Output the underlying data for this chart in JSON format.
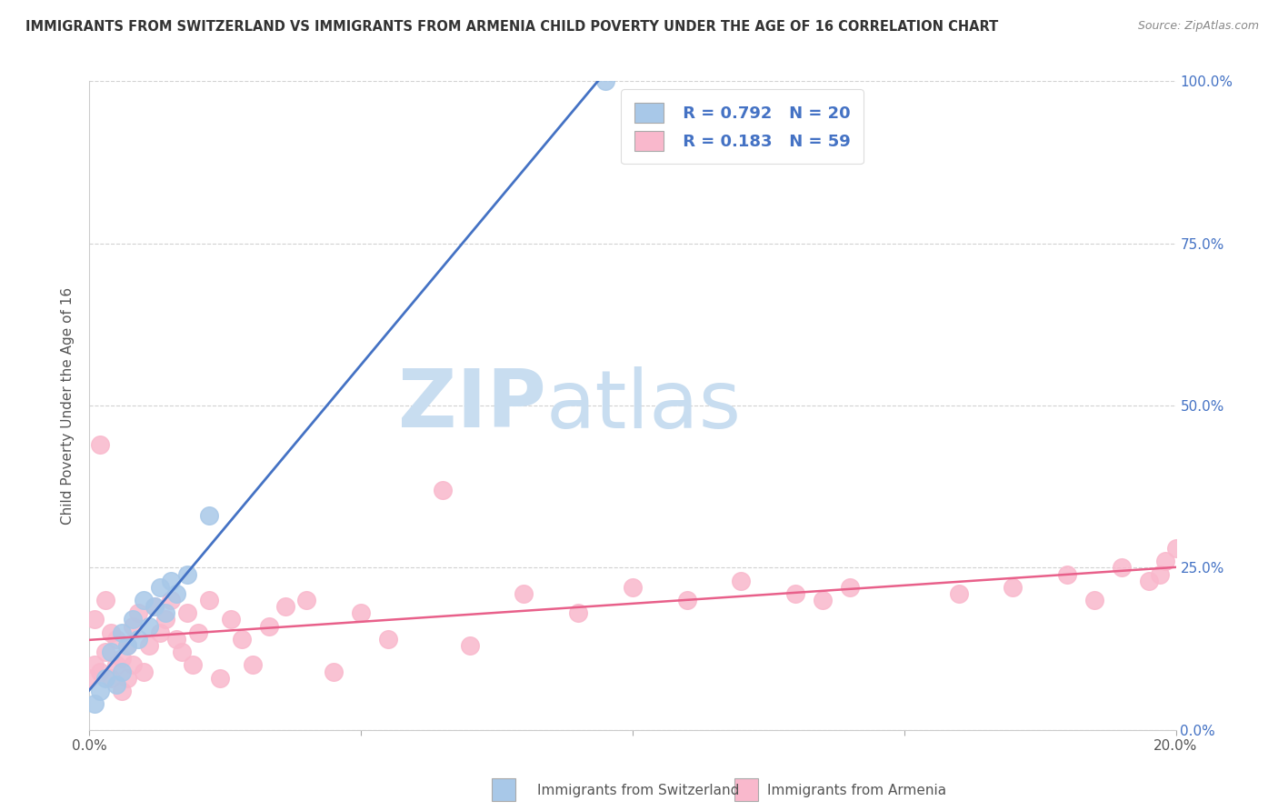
{
  "title": "IMMIGRANTS FROM SWITZERLAND VS IMMIGRANTS FROM ARMENIA CHILD POVERTY UNDER THE AGE OF 16 CORRELATION CHART",
  "source": "Source: ZipAtlas.com",
  "ylabel": "Child Poverty Under the Age of 16",
  "xlabel_switzerland": "Immigrants from Switzerland",
  "xlabel_armenia": "Immigrants from Armenia",
  "watermark_zip": "ZIP",
  "watermark_atlas": "atlas",
  "legend_r_switzerland": "R = 0.792",
  "legend_n_switzerland": "N = 20",
  "legend_r_armenia": "R = 0.183",
  "legend_n_armenia": "N = 59",
  "color_switzerland": "#a8c8e8",
  "color_armenia": "#f9b8cc",
  "color_line_switzerland": "#4472c4",
  "color_line_armenia": "#e8608a",
  "color_ytick": "#4472c4",
  "color_legend_text": "#4472c4",
  "xlim": [
    0.0,
    0.2
  ],
  "ylim": [
    0.0,
    1.0
  ],
  "xticks_labeled": [
    0.0,
    0.2
  ],
  "xticks_minor": [
    0.05,
    0.1,
    0.15
  ],
  "yticks": [
    0.0,
    0.25,
    0.5,
    0.75,
    1.0
  ],
  "sw_x": [
    0.001,
    0.002,
    0.003,
    0.004,
    0.005,
    0.006,
    0.006,
    0.007,
    0.008,
    0.009,
    0.01,
    0.011,
    0.012,
    0.013,
    0.014,
    0.015,
    0.016,
    0.018,
    0.022,
    0.095
  ],
  "sw_y": [
    0.04,
    0.06,
    0.08,
    0.12,
    0.07,
    0.09,
    0.15,
    0.13,
    0.17,
    0.14,
    0.2,
    0.16,
    0.19,
    0.22,
    0.18,
    0.23,
    0.21,
    0.24,
    0.33,
    1.0
  ],
  "ar_x": [
    0.0,
    0.001,
    0.001,
    0.002,
    0.002,
    0.003,
    0.003,
    0.004,
    0.004,
    0.005,
    0.005,
    0.006,
    0.006,
    0.007,
    0.007,
    0.008,
    0.008,
    0.009,
    0.01,
    0.011,
    0.012,
    0.013,
    0.014,
    0.015,
    0.016,
    0.017,
    0.018,
    0.019,
    0.02,
    0.022,
    0.024,
    0.026,
    0.028,
    0.03,
    0.033,
    0.036,
    0.04,
    0.045,
    0.05,
    0.055,
    0.065,
    0.07,
    0.08,
    0.09,
    0.1,
    0.11,
    0.12,
    0.13,
    0.135,
    0.14,
    0.16,
    0.17,
    0.18,
    0.185,
    0.19,
    0.195,
    0.197,
    0.198,
    0.2
  ],
  "ar_y": [
    0.08,
    0.1,
    0.17,
    0.09,
    0.44,
    0.12,
    0.2,
    0.08,
    0.15,
    0.1,
    0.14,
    0.06,
    0.11,
    0.13,
    0.08,
    0.1,
    0.16,
    0.18,
    0.09,
    0.13,
    0.19,
    0.15,
    0.17,
    0.2,
    0.14,
    0.12,
    0.18,
    0.1,
    0.15,
    0.2,
    0.08,
    0.17,
    0.14,
    0.1,
    0.16,
    0.19,
    0.2,
    0.09,
    0.18,
    0.14,
    0.37,
    0.13,
    0.21,
    0.18,
    0.22,
    0.2,
    0.23,
    0.21,
    0.2,
    0.22,
    0.21,
    0.22,
    0.24,
    0.2,
    0.25,
    0.23,
    0.24,
    0.26,
    0.28
  ]
}
